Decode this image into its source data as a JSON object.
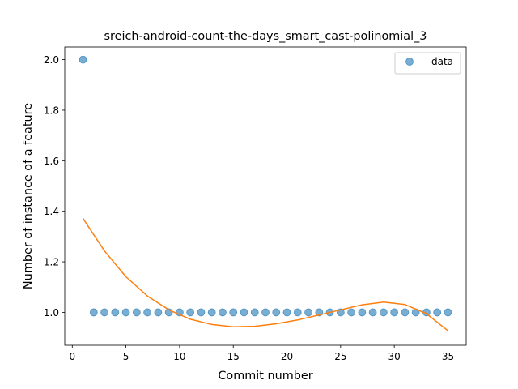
{
  "chart_data": {
    "type": "scatter",
    "title": "sreich-android-count-the-days_smart_cast-polinomial_3",
    "xlabel": "Commit number",
    "ylabel": "Number of instance of a feature",
    "xlim": [
      -0.7,
      36.7
    ],
    "ylim": [
      0.87,
      2.05
    ],
    "xticks": [
      0,
      5,
      10,
      15,
      20,
      25,
      30,
      35
    ],
    "yticks": [
      1.0,
      1.2,
      1.4,
      1.6,
      1.8,
      2.0
    ],
    "ytick_labels": [
      "1.0",
      "1.2",
      "1.4",
      "1.6",
      "1.8",
      "2.0"
    ],
    "legend_position": "top-right",
    "series": [
      {
        "name": "data",
        "kind": "scatter",
        "color": "#1f77b4",
        "x": [
          1,
          2,
          3,
          4,
          5,
          6,
          7,
          8,
          9,
          10,
          11,
          12,
          13,
          14,
          15,
          16,
          17,
          18,
          19,
          20,
          21,
          22,
          23,
          24,
          25,
          26,
          27,
          28,
          29,
          30,
          31,
          32,
          33,
          34,
          35
        ],
        "y": [
          2,
          1,
          1,
          1,
          1,
          1,
          1,
          1,
          1,
          1,
          1,
          1,
          1,
          1,
          1,
          1,
          1,
          1,
          1,
          1,
          1,
          1,
          1,
          1,
          1,
          1,
          1,
          1,
          1,
          1,
          1,
          1,
          1,
          1,
          1
        ]
      },
      {
        "kind": "line",
        "color": "#ff7f0e",
        "fit": "polynomial degree 3",
        "x": [
          1,
          3,
          5,
          7,
          9,
          11,
          13,
          15,
          17,
          19,
          21,
          23,
          25,
          27,
          29,
          31,
          33,
          35
        ],
        "y": [
          1.372,
          1.243,
          1.141,
          1.065,
          1.01,
          0.973,
          0.952,
          0.943,
          0.945,
          0.955,
          0.97,
          0.99,
          1.01,
          1.03,
          1.041,
          1.031,
          0.995,
          0.927
        ]
      }
    ]
  }
}
